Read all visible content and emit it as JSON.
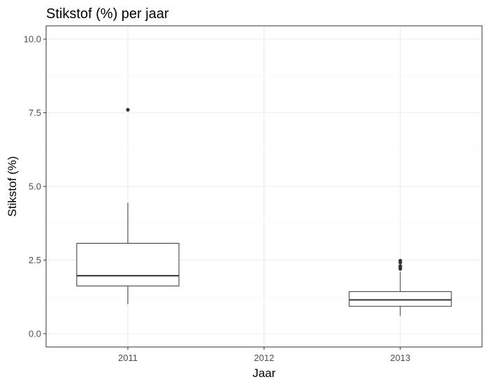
{
  "chart_data": {
    "type": "boxplot",
    "title": "Stikstof (%) per jaar",
    "xlabel": "Jaar",
    "ylabel": "Stikstof (%)",
    "categories": [
      "2011",
      "2012",
      "2013"
    ],
    "ylim": [
      -0.45,
      10.45
    ],
    "yticks": [
      0.0,
      2.5,
      5.0,
      7.5,
      10.0
    ],
    "ytick_labels": [
      "0.0",
      "2.5",
      "5.0",
      "7.5",
      "10.0"
    ],
    "grid": true,
    "boxes": [
      {
        "category": "2011",
        "lower_whisker": 1.0,
        "q1": 1.62,
        "median": 1.97,
        "q3": 3.07,
        "upper_whisker": 4.45,
        "outliers": [
          7.6
        ]
      },
      {
        "category": "2013",
        "lower_whisker": 0.6,
        "q1": 0.93,
        "median": 1.15,
        "q3": 1.43,
        "upper_whisker": 2.1,
        "outliers": [
          2.2,
          2.25,
          2.3,
          2.42,
          2.48
        ]
      }
    ]
  }
}
